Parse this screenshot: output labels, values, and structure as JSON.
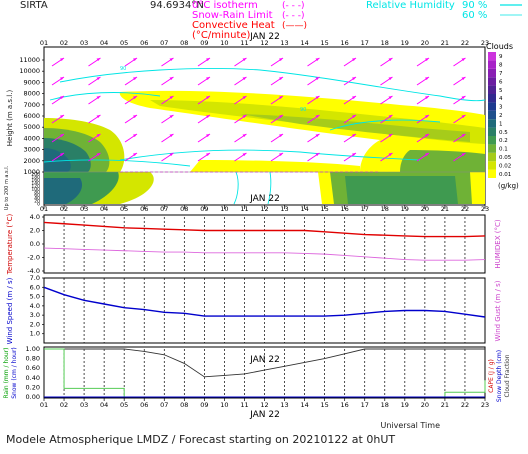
{
  "header": {
    "site": "SIRTA",
    "coords": "94.6934°N",
    "legend_left": [
      {
        "label": "0°C isotherm",
        "sample": "(- - -)",
        "color": "#ff00ff"
      },
      {
        "label": "Snow-Rain Limit",
        "sample": "(- - -)",
        "color": "#ff00ff"
      },
      {
        "label": "Convective Heat",
        "sample": "(——)",
        "color": "#ff0000"
      },
      {
        "label": "(°C/minute)",
        "sample": "",
        "color": "#ff0000"
      }
    ],
    "legend_right": [
      {
        "label": "Relative Humidity",
        "v1": "90 %",
        "v2": "60 %",
        "color": "#00e5e5"
      }
    ]
  },
  "footer": {
    "universal_time": "Universal Time",
    "model": "Modele Atmospherique LMDZ / Forecast starting on 20210122 at 0hUT"
  },
  "chart_data": [
    {
      "type": "heatmap",
      "name": "clouds",
      "date_label": "JAN 22",
      "hours": [
        "01",
        "02",
        "03",
        "04",
        "05",
        "06",
        "07",
        "08",
        "09",
        "10",
        "11",
        "12",
        "13",
        "14",
        "15",
        "16",
        "17",
        "18",
        "19",
        "20",
        "21",
        "22",
        "23"
      ],
      "ylabel": "Height (m a.s.l.)",
      "ylabel2": "Up to 200 m a.s.l.",
      "yticks": [
        1000,
        2000,
        3000,
        4000,
        5000,
        6000,
        7000,
        8000,
        9000,
        10000,
        11000
      ],
      "yticks_low": [
        0,
        20,
        40,
        60,
        80,
        100,
        120,
        140,
        160,
        180,
        200
      ],
      "colorbar": {
        "title": "Clouds",
        "unit": "(g/kg)",
        "levels": [
          {
            "label": "0.01",
            "color": "#ffff00"
          },
          {
            "label": "0.02",
            "color": "#d4e600"
          },
          {
            "label": "0.05",
            "color": "#a6cc1a"
          },
          {
            "label": "0.1",
            "color": "#6fb236"
          },
          {
            "label": "0.2",
            "color": "#3f9a50"
          },
          {
            "label": "0.5",
            "color": "#2a7f66"
          },
          {
            "label": "1",
            "color": "#1f6a7a"
          },
          {
            "label": "2",
            "color": "#1f508c"
          },
          {
            "label": "3",
            "color": "#1d3a8f"
          },
          {
            "label": "4",
            "color": "#322a8f"
          },
          {
            "label": "5",
            "color": "#4f2293"
          },
          {
            "label": "6",
            "color": "#6b1da1"
          },
          {
            "label": "7",
            "color": "#8a1fb4"
          },
          {
            "label": "8",
            "color": "#a822c8"
          },
          {
            "label": "9",
            "color": "#cc33dd"
          }
        ]
      },
      "rh_label": "90"
    },
    {
      "type": "line",
      "name": "temperature",
      "date_label": "JAN 22",
      "ylabel": "Temperature (°C)",
      "ylabel_right": "HUMIDEX (°C)",
      "yticks": [
        "4.0",
        "2.0",
        "0.0",
        "-2.0",
        "-4.0"
      ],
      "ylim": [
        -4,
        4
      ],
      "series": [
        {
          "color": "#e00000",
          "values": [
            3.2,
            3.0,
            2.8,
            2.6,
            2.4,
            2.3,
            2.2,
            2.1,
            2.0,
            2.0,
            2.0,
            2.0,
            2.0,
            2.0,
            1.8,
            1.6,
            1.4,
            1.3,
            1.2,
            1.1,
            1.1,
            1.1,
            1.2
          ]
        },
        {
          "color": "#dd66dd",
          "values": [
            -0.6,
            -0.7,
            -0.8,
            -0.9,
            -1.0,
            -1.1,
            -1.2,
            -1.2,
            -1.3,
            -1.3,
            -1.3,
            -1.3,
            -1.3,
            -1.4,
            -1.5,
            -1.7,
            -1.9,
            -2.1,
            -2.3,
            -2.4,
            -2.4,
            -2.4,
            -2.3
          ]
        }
      ]
    },
    {
      "type": "line",
      "name": "wind",
      "ylabel": "Wind Speed (m / s)",
      "ylabel_right": "Wind Gust (m / s)",
      "yticks": [
        "7.0",
        "6.0",
        "5.0",
        "4.0",
        "3.0",
        "2.0",
        "1.0"
      ],
      "ylim": [
        0,
        7
      ],
      "series": [
        {
          "color": "#0000cc",
          "values": [
            6.0,
            5.2,
            4.6,
            4.2,
            3.8,
            3.6,
            3.3,
            3.2,
            2.9,
            2.9,
            2.9,
            2.9,
            2.9,
            2.9,
            2.9,
            3.0,
            3.2,
            3.4,
            3.5,
            3.5,
            3.4,
            3.1,
            2.8
          ]
        }
      ]
    },
    {
      "type": "line",
      "name": "precipitation",
      "date_label": "JAN 22",
      "ylabel": "Rain (mm / hour)",
      "ylabel2": "Snow (cm / hour)",
      "ylabel_right": "CAPE (J / g)",
      "ylabel_right2": "Snow Depth (cm)",
      "ylabel_right3": "Cloud Fraction",
      "yticks": [
        "1.00",
        "0.80",
        "0.60",
        "0.40",
        "0.20",
        "0.00"
      ],
      "ylim": [
        0,
        1
      ],
      "series": [
        {
          "color": "#333333",
          "values": [
            1.0,
            1.0,
            1.0,
            1.0,
            1.0,
            0.95,
            0.88,
            0.7,
            0.42,
            0.45,
            0.48,
            0.56,
            0.64,
            0.72,
            0.8,
            0.9,
            1.0,
            1.0,
            1.0,
            1.0,
            1.0,
            1.0,
            1.0
          ]
        },
        {
          "color": "#55cc55",
          "values": [
            1.0,
            0.18,
            0.18,
            0.18,
            0.0,
            0.0,
            0.0,
            0.0,
            0.0,
            0.0,
            0.0,
            0.0,
            0.0,
            0.0,
            0.0,
            0.0,
            0.0,
            0.0,
            0.0,
            0.0,
            0.1,
            0.1,
            0.35
          ]
        }
      ]
    }
  ]
}
